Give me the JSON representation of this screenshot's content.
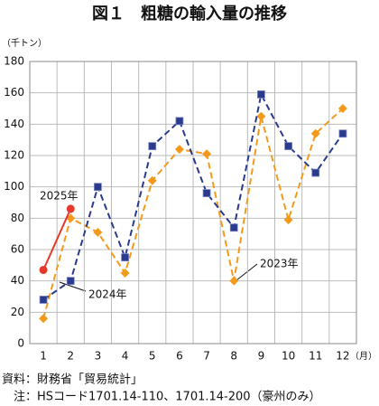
{
  "chart_data": {
    "type": "line",
    "title": "図１　粗糖の輸入量の推移",
    "y_unit": "（千トン）",
    "x_unit": "（月）",
    "categories": [
      "1",
      "2",
      "3",
      "4",
      "5",
      "6",
      "7",
      "8",
      "9",
      "10",
      "11",
      "12"
    ],
    "series": [
      {
        "name": "2025年",
        "color": "#e8382a",
        "marker": "circle",
        "dashed": false,
        "values": [
          47,
          86,
          null,
          null,
          null,
          null,
          null,
          null,
          null,
          null,
          null,
          null
        ]
      },
      {
        "name": "2024年",
        "color": "#2a3a8c",
        "marker": "square",
        "dashed": true,
        "values": [
          28,
          40,
          100,
          55,
          126,
          142,
          96,
          74,
          159,
          126,
          109,
          134
        ]
      },
      {
        "name": "2023年",
        "color": "#f39a1c",
        "marker": "diamond",
        "dashed": true,
        "values": [
          16,
          80,
          71,
          45,
          104,
          124,
          121,
          40,
          145,
          79,
          134,
          150
        ]
      }
    ],
    "ylim": [
      0,
      180
    ],
    "yticks": [
      0,
      20,
      40,
      60,
      80,
      100,
      120,
      140,
      160,
      180
    ],
    "grid": true,
    "notes": [
      "資料：財務省「貿易統計」",
      "　注：HSコード1701.14-110、1701.14-200（豪州のみ）"
    ]
  }
}
